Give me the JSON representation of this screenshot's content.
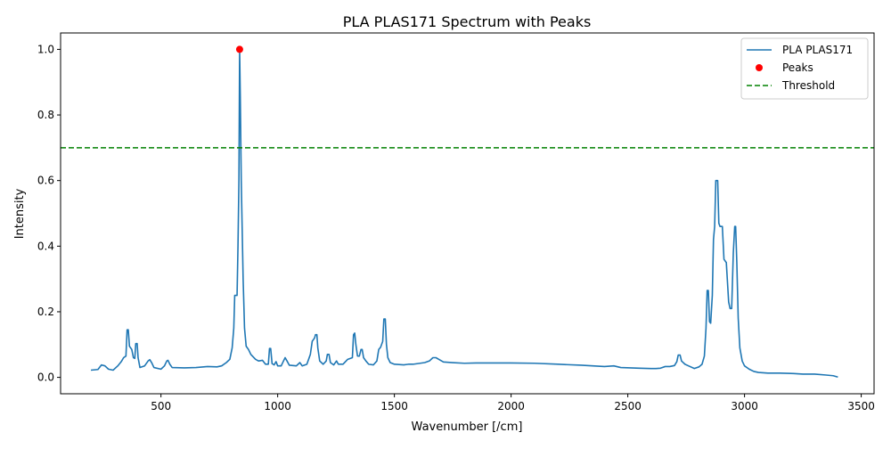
{
  "chart_data": {
    "type": "line",
    "title": "PLA PLAS171 Spectrum with Peaks",
    "xlabel": "Wavenumber [/cm]",
    "ylabel": "Intensity",
    "xlim": [
      70,
      3555
    ],
    "ylim": [
      -0.05,
      1.05
    ],
    "x_ticks": [
      500,
      1000,
      1500,
      2000,
      2500,
      3000,
      3500
    ],
    "y_ticks": [
      0.0,
      0.2,
      0.4,
      0.6,
      0.8,
      1.0
    ],
    "x_tick_labels": [
      "500",
      "1000",
      "1500",
      "2000",
      "2500",
      "3000",
      "3500"
    ],
    "y_tick_labels": [
      "0.0",
      "0.2",
      "0.4",
      "0.6",
      "0.8",
      "1.0"
    ],
    "grid": false,
    "legend_position": "top-right",
    "series": [
      {
        "name": "PLA PLAS171",
        "color": "#1f77b4",
        "style": "solid",
        "points": [
          [
            200,
            0.022
          ],
          [
            230,
            0.024
          ],
          [
            245,
            0.038
          ],
          [
            260,
            0.035
          ],
          [
            275,
            0.025
          ],
          [
            295,
            0.022
          ],
          [
            315,
            0.035
          ],
          [
            330,
            0.048
          ],
          [
            340,
            0.06
          ],
          [
            350,
            0.065
          ],
          [
            355,
            0.145
          ],
          [
            360,
            0.145
          ],
          [
            365,
            0.095
          ],
          [
            375,
            0.085
          ],
          [
            382,
            0.06
          ],
          [
            388,
            0.058
          ],
          [
            392,
            0.103
          ],
          [
            398,
            0.103
          ],
          [
            402,
            0.06
          ],
          [
            410,
            0.03
          ],
          [
            430,
            0.035
          ],
          [
            445,
            0.05
          ],
          [
            452,
            0.054
          ],
          [
            460,
            0.045
          ],
          [
            470,
            0.03
          ],
          [
            500,
            0.025
          ],
          [
            515,
            0.035
          ],
          [
            525,
            0.05
          ],
          [
            530,
            0.052
          ],
          [
            538,
            0.04
          ],
          [
            548,
            0.03
          ],
          [
            600,
            0.029
          ],
          [
            650,
            0.03
          ],
          [
            700,
            0.033
          ],
          [
            740,
            0.032
          ],
          [
            760,
            0.035
          ],
          [
            780,
            0.045
          ],
          [
            795,
            0.055
          ],
          [
            805,
            0.09
          ],
          [
            812,
            0.15
          ],
          [
            816,
            0.25
          ],
          [
            826,
            0.25
          ],
          [
            830,
            0.4
          ],
          [
            834,
            0.6
          ],
          [
            837,
            1.0
          ],
          [
            840,
            0.85
          ],
          [
            844,
            0.6
          ],
          [
            848,
            0.45
          ],
          [
            852,
            0.3
          ],
          [
            858,
            0.15
          ],
          [
            865,
            0.095
          ],
          [
            875,
            0.085
          ],
          [
            885,
            0.07
          ],
          [
            905,
            0.055
          ],
          [
            918,
            0.05
          ],
          [
            935,
            0.052
          ],
          [
            948,
            0.04
          ],
          [
            960,
            0.04
          ],
          [
            965,
            0.088
          ],
          [
            970,
            0.088
          ],
          [
            976,
            0.042
          ],
          [
            985,
            0.038
          ],
          [
            993,
            0.048
          ],
          [
            1000,
            0.035
          ],
          [
            1015,
            0.035
          ],
          [
            1025,
            0.05
          ],
          [
            1032,
            0.06
          ],
          [
            1040,
            0.05
          ],
          [
            1050,
            0.037
          ],
          [
            1080,
            0.035
          ],
          [
            1095,
            0.045
          ],
          [
            1105,
            0.035
          ],
          [
            1125,
            0.04
          ],
          [
            1140,
            0.07
          ],
          [
            1148,
            0.11
          ],
          [
            1158,
            0.12
          ],
          [
            1162,
            0.13
          ],
          [
            1168,
            0.13
          ],
          [
            1172,
            0.09
          ],
          [
            1180,
            0.05
          ],
          [
            1195,
            0.04
          ],
          [
            1208,
            0.05
          ],
          [
            1213,
            0.07
          ],
          [
            1220,
            0.07
          ],
          [
            1226,
            0.045
          ],
          [
            1240,
            0.038
          ],
          [
            1252,
            0.05
          ],
          [
            1260,
            0.04
          ],
          [
            1280,
            0.04
          ],
          [
            1300,
            0.055
          ],
          [
            1320,
            0.06
          ],
          [
            1325,
            0.13
          ],
          [
            1330,
            0.135
          ],
          [
            1335,
            0.1
          ],
          [
            1342,
            0.065
          ],
          [
            1350,
            0.065
          ],
          [
            1357,
            0.085
          ],
          [
            1362,
            0.085
          ],
          [
            1368,
            0.06
          ],
          [
            1378,
            0.05
          ],
          [
            1390,
            0.04
          ],
          [
            1410,
            0.038
          ],
          [
            1425,
            0.05
          ],
          [
            1433,
            0.085
          ],
          [
            1441,
            0.092
          ],
          [
            1450,
            0.11
          ],
          [
            1455,
            0.178
          ],
          [
            1461,
            0.178
          ],
          [
            1466,
            0.1
          ],
          [
            1472,
            0.06
          ],
          [
            1482,
            0.045
          ],
          [
            1500,
            0.04
          ],
          [
            1540,
            0.038
          ],
          [
            1560,
            0.04
          ],
          [
            1580,
            0.04
          ],
          [
            1600,
            0.042
          ],
          [
            1630,
            0.045
          ],
          [
            1650,
            0.05
          ],
          [
            1665,
            0.06
          ],
          [
            1678,
            0.06
          ],
          [
            1690,
            0.055
          ],
          [
            1710,
            0.047
          ],
          [
            1750,
            0.045
          ],
          [
            1800,
            0.043
          ],
          [
            1850,
            0.044
          ],
          [
            1900,
            0.044
          ],
          [
            2000,
            0.044
          ],
          [
            2100,
            0.043
          ],
          [
            2200,
            0.04
          ],
          [
            2300,
            0.037
          ],
          [
            2400,
            0.033
          ],
          [
            2440,
            0.035
          ],
          [
            2470,
            0.03
          ],
          [
            2550,
            0.028
          ],
          [
            2600,
            0.027
          ],
          [
            2620,
            0.027
          ],
          [
            2640,
            0.028
          ],
          [
            2660,
            0.033
          ],
          [
            2680,
            0.033
          ],
          [
            2700,
            0.036
          ],
          [
            2710,
            0.048
          ],
          [
            2716,
            0.068
          ],
          [
            2724,
            0.068
          ],
          [
            2730,
            0.05
          ],
          [
            2745,
            0.04
          ],
          [
            2760,
            0.035
          ],
          [
            2785,
            0.027
          ],
          [
            2805,
            0.032
          ],
          [
            2818,
            0.04
          ],
          [
            2828,
            0.065
          ],
          [
            2835,
            0.15
          ],
          [
            2840,
            0.265
          ],
          [
            2845,
            0.265
          ],
          [
            2850,
            0.17
          ],
          [
            2855,
            0.165
          ],
          [
            2862,
            0.25
          ],
          [
            2867,
            0.42
          ],
          [
            2872,
            0.46
          ],
          [
            2877,
            0.6
          ],
          [
            2885,
            0.6
          ],
          [
            2890,
            0.47
          ],
          [
            2895,
            0.46
          ],
          [
            2905,
            0.46
          ],
          [
            2912,
            0.36
          ],
          [
            2922,
            0.35
          ],
          [
            2932,
            0.23
          ],
          [
            2938,
            0.21
          ],
          [
            2945,
            0.21
          ],
          [
            2952,
            0.38
          ],
          [
            2958,
            0.46
          ],
          [
            2962,
            0.46
          ],
          [
            2967,
            0.35
          ],
          [
            2973,
            0.18
          ],
          [
            2980,
            0.09
          ],
          [
            2990,
            0.05
          ],
          [
            3000,
            0.035
          ],
          [
            3020,
            0.025
          ],
          [
            3040,
            0.018
          ],
          [
            3060,
            0.015
          ],
          [
            3100,
            0.013
          ],
          [
            3150,
            0.013
          ],
          [
            3200,
            0.012
          ],
          [
            3250,
            0.01
          ],
          [
            3300,
            0.01
          ],
          [
            3350,
            0.007
          ],
          [
            3380,
            0.005
          ],
          [
            3400,
            0.001
          ]
        ]
      },
      {
        "name": "Peaks",
        "color": "#ff0000",
        "style": "marker",
        "points": [
          [
            837,
            1.0
          ]
        ]
      },
      {
        "name": "Threshold",
        "color": "#008000",
        "style": "dashed",
        "y": 0.7
      }
    ]
  }
}
